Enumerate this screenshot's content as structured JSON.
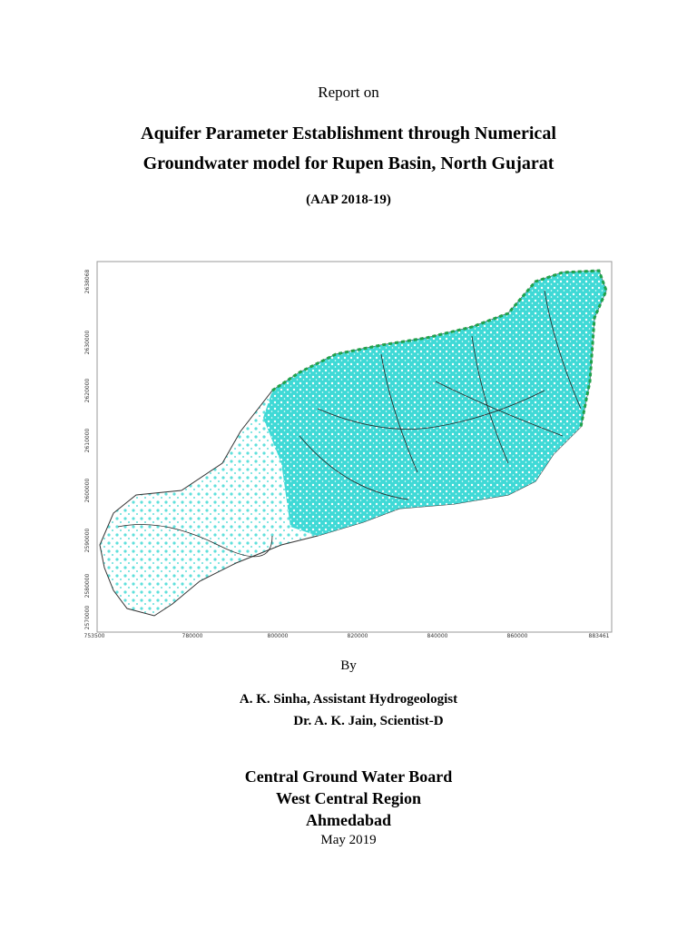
{
  "header": {
    "pretitle": "Report on",
    "title_line1": "Aquifer Parameter Establishment through Numerical",
    "title_line2": "Groundwater model for Rupen Basin, North Gujarat",
    "subtitle": "(AAP 2018-19)"
  },
  "map": {
    "x_labels": [
      "753500",
      "780000",
      "800000",
      "820000",
      "840000",
      "860000",
      "883461"
    ],
    "y_labels": [
      "2570000",
      "2580000",
      "2590000",
      "2600000",
      "2610000",
      "2620000",
      "2630000",
      "2638068"
    ]
  },
  "authors": {
    "by": "By",
    "lines": [
      "A. K. Sinha, Assistant Hydrogeologist",
      "Dr. A. K. Jain, Scientist-D"
    ]
  },
  "organization": {
    "lines": [
      "Central Ground Water Board",
      "West Central Region",
      "Ahmedabad"
    ],
    "date": "May 2019"
  }
}
